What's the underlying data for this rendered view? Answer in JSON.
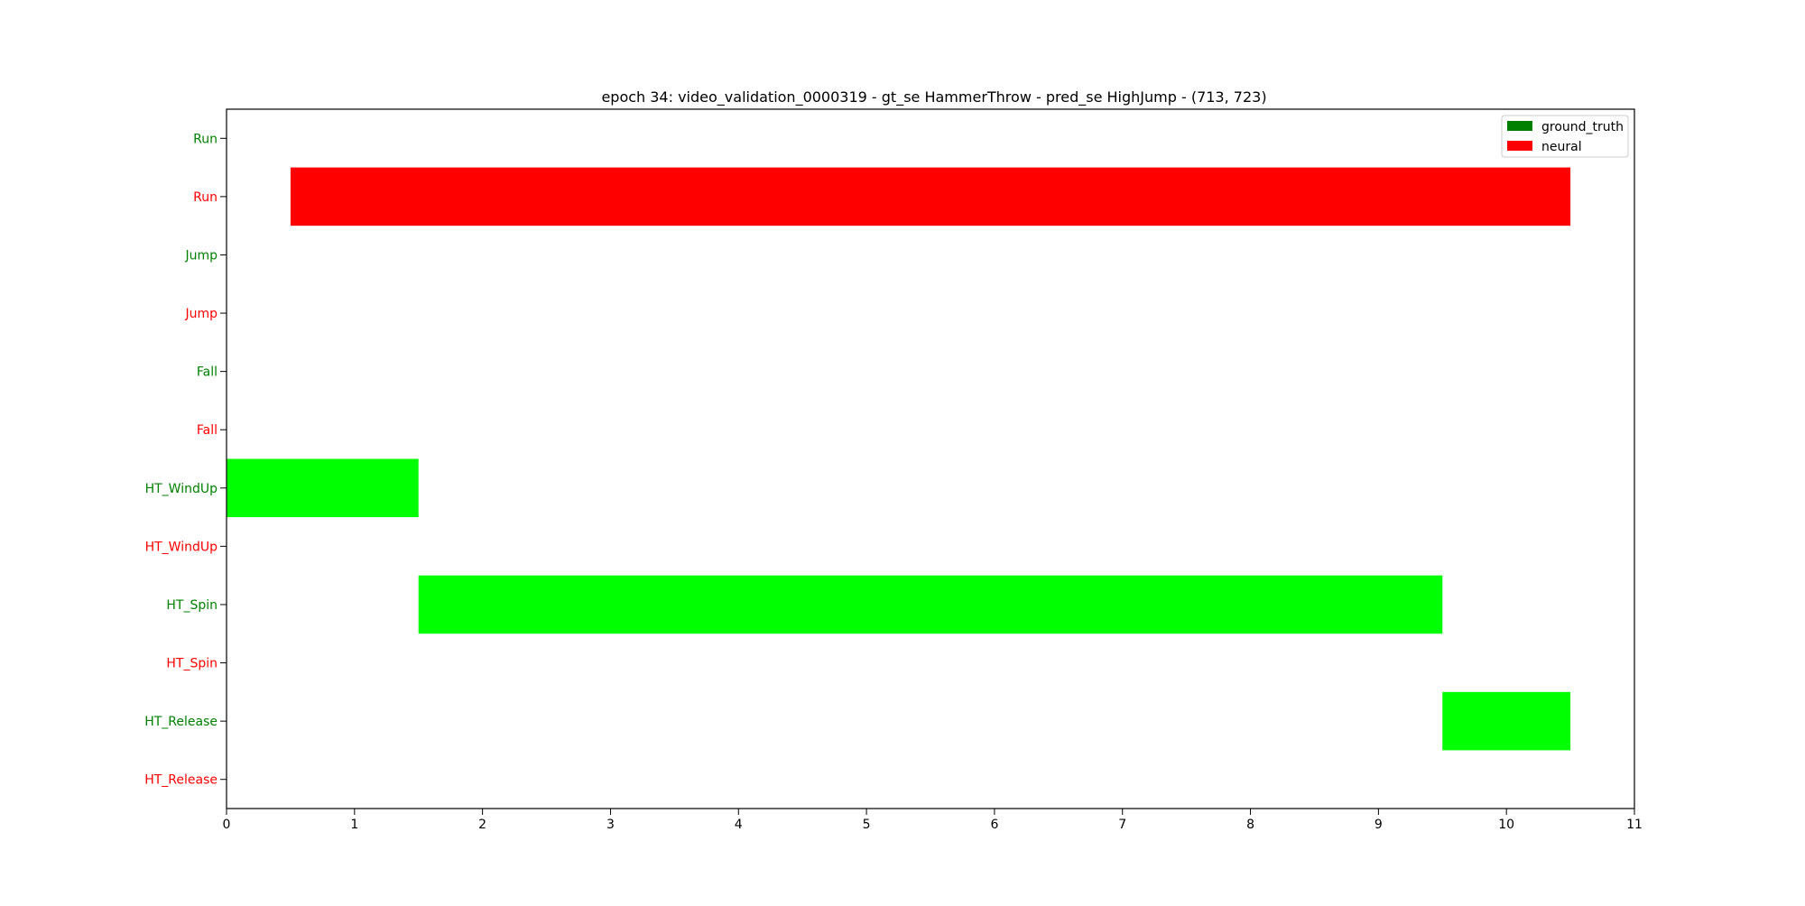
{
  "chart_data": {
    "type": "bar",
    "orientation": "horizontal",
    "title": "epoch 34: video_validation_0000319 - gt_se HammerThrow - pred_se HighJump - (713, 723)",
    "xlabel": "",
    "ylabel": "",
    "xlim": [
      0,
      11
    ],
    "xticks": [
      0,
      1,
      2,
      3,
      4,
      5,
      6,
      7,
      8,
      9,
      10,
      11
    ],
    "grid": false,
    "legend_position": "top-right",
    "legend": [
      {
        "label": "ground_truth",
        "color": "#008000"
      },
      {
        "label": "neural",
        "color": "#ff0000"
      }
    ],
    "rows": [
      {
        "label": "Run",
        "color": "#008000"
      },
      {
        "label": "Run",
        "color": "#ff0000"
      },
      {
        "label": "Jump",
        "color": "#008000"
      },
      {
        "label": "Jump",
        "color": "#ff0000"
      },
      {
        "label": "Fall",
        "color": "#008000"
      },
      {
        "label": "Fall",
        "color": "#ff0000"
      },
      {
        "label": "HT_WindUp",
        "color": "#008000"
      },
      {
        "label": "HT_WindUp",
        "color": "#ff0000"
      },
      {
        "label": "HT_Spin",
        "color": "#008000"
      },
      {
        "label": "HT_Spin",
        "color": "#ff0000"
      },
      {
        "label": "HT_Release",
        "color": "#008000"
      },
      {
        "label": "HT_Release",
        "color": "#ff0000"
      }
    ],
    "bars": [
      {
        "row": 1,
        "start": 0.5,
        "end": 10.5,
        "color": "#ff0000"
      },
      {
        "row": 6,
        "start": 0,
        "end": 1.5,
        "color": "#00ff00"
      },
      {
        "row": 8,
        "start": 1.5,
        "end": 9.5,
        "color": "#00ff00"
      },
      {
        "row": 10,
        "start": 9.5,
        "end": 10.5,
        "color": "#00ff00"
      }
    ]
  }
}
